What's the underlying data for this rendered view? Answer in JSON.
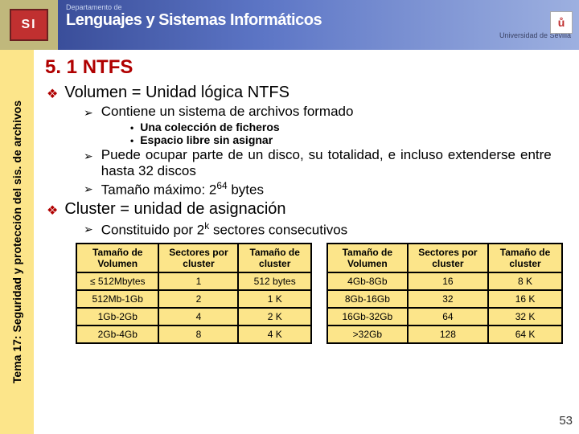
{
  "banner": {
    "dept": "Departamento de",
    "title": "Lenguajes y Sistemas Informáticos",
    "subtitle": "Universidad de Sevilla",
    "badge": "ů"
  },
  "side_label": "Tema 17: Seguridad y protección del sis. de archivos",
  "section_title": "5. 1 NTFS",
  "b1": {
    "title": "Volumen = Unidad lógica NTFS",
    "a1": "Contiene un sistema de archivos formado",
    "d1": "Una colección de ficheros",
    "d2": "Espacio libre sin asignar",
    "a2": "Puede ocupar parte de un disco, su totalidad, e incluso extenderse entre hasta 32 discos",
    "a3_pre": "Tamaño máximo: 2",
    "a3_sup": "64",
    "a3_post": " bytes"
  },
  "b2": {
    "title": "Cluster = unidad de asignación",
    "a1_pre": "Constituido por 2",
    "a1_sup": "k",
    "a1_post": " sectores consecutivos"
  },
  "table_headers": {
    "h1": "Tamaño de Volumen",
    "h2": "Sectores por cluster",
    "h3": "Tamaño de cluster"
  },
  "table1": [
    [
      "≤ 512Mbytes",
      "1",
      "512 bytes"
    ],
    [
      "512Mb-1Gb",
      "2",
      "1 K"
    ],
    [
      "1Gb-2Gb",
      "4",
      "2 K"
    ],
    [
      "2Gb-4Gb",
      "8",
      "4 K"
    ]
  ],
  "table2": [
    [
      "4Gb-8Gb",
      "16",
      "8 K"
    ],
    [
      "8Gb-16Gb",
      "32",
      "16 K"
    ],
    [
      "16Gb-32Gb",
      "64",
      "32 K"
    ],
    [
      ">32Gb",
      "128",
      "64 K"
    ]
  ],
  "page_number": "53",
  "colors": {
    "background_yellow": "#fce58a",
    "title_red": "#b00000",
    "banner_gradient_start": "#3a4e9a",
    "banner_gradient_end": "#9db0e0"
  }
}
